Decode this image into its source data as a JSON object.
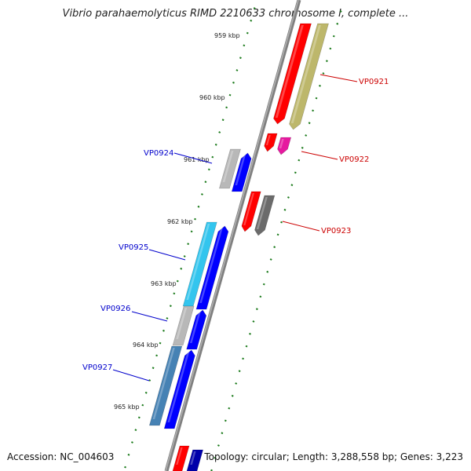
{
  "header": {
    "title": "Vibrio parahaemolyticus RIMD 2210633 chromosome I, complete ..."
  },
  "footer": {
    "accession": "Accession: NC_004603",
    "summary": "Topology: circular; Length: 3,288,558 bp; Genes: 3,223"
  },
  "ruler": {
    "tick_labels": [
      "959 kbp",
      "960 kbp",
      "961 kbp",
      "962 kbp",
      "963 kbp",
      "964 kbp",
      "965 kbp"
    ]
  },
  "genes": {
    "forward": [
      {
        "name": "VP0921",
        "color": "#cc0000"
      },
      {
        "name": "VP0922",
        "color": "#cc0000"
      },
      {
        "name": "VP0923",
        "color": "#cc0000"
      }
    ],
    "reverse": [
      {
        "name": "VP0924",
        "color": "#0000cc"
      },
      {
        "name": "VP0925",
        "color": "#0000cc"
      },
      {
        "name": "VP0926",
        "color": "#0000cc"
      },
      {
        "name": "VP0927",
        "color": "#0000cc"
      }
    ]
  },
  "colors": {
    "backbone": "#808080",
    "tick": "#1a7a1a",
    "cds_forward": "#ff0000",
    "cds_reverse": "#0000ff",
    "forward_label": "#cc0000",
    "reverse_label": "#0000cc"
  }
}
